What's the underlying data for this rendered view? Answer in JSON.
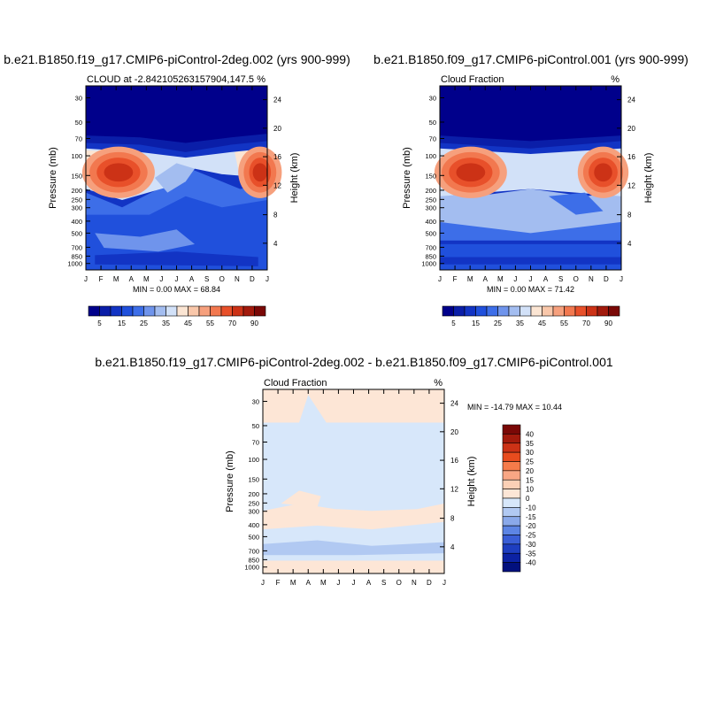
{
  "chart_data": [
    {
      "type": "heatmap",
      "title": "b.e21.B1850.f19_g17.CMIP6-piControl-2deg.002 (yrs 900-999)",
      "left_label": "CLOUD at -2.842105263157904,147.5",
      "right_label": "%",
      "ylabel": "Pressure (mb)",
      "ylabel_right": "Height (km)",
      "x_ticks": [
        "J",
        "F",
        "M",
        "A",
        "M",
        "J",
        "J",
        "A",
        "S",
        "O",
        "N",
        "D",
        "J"
      ],
      "y_ticks": [
        "30",
        "50",
        "70",
        "100",
        "150",
        "200",
        "250",
        "300",
        "400",
        "500",
        "700",
        "850",
        "1000"
      ],
      "y_ticks_right": [
        "24",
        "20",
        "16",
        "12",
        "8",
        "4"
      ],
      "stats": "MIN =   0.00 MAX =  68.84",
      "value_range": [
        0,
        68.84
      ],
      "colorbar_labels": [
        "5",
        "15",
        "25",
        "35",
        "45",
        "55",
        "70",
        "90"
      ]
    },
    {
      "type": "heatmap",
      "title": "b.e21.B1850.f09_g17.CMIP6-piControl.001 (yrs 900-999)",
      "left_label": "Cloud Fraction",
      "right_label": "%",
      "ylabel": "Pressure (mb)",
      "ylabel_right": "Height (km)",
      "x_ticks": [
        "J",
        "F",
        "M",
        "A",
        "M",
        "J",
        "J",
        "A",
        "S",
        "O",
        "N",
        "D",
        "J"
      ],
      "y_ticks": [
        "30",
        "50",
        "70",
        "100",
        "150",
        "200",
        "250",
        "300",
        "400",
        "500",
        "700",
        "850",
        "1000"
      ],
      "y_ticks_right": [
        "24",
        "20",
        "16",
        "12",
        "8",
        "4"
      ],
      "stats": "MIN =   0.00 MAX =  71.42",
      "value_range": [
        0,
        71.42
      ],
      "colorbar_labels": [
        "5",
        "15",
        "25",
        "35",
        "45",
        "55",
        "70",
        "90"
      ]
    },
    {
      "type": "heatmap",
      "title": "b.e21.B1850.f19_g17.CMIP6-piControl-2deg.002 - b.e21.B1850.f09_g17.CMIP6-piControl.001",
      "left_label": "Cloud Fraction",
      "right_label": "%",
      "ylabel": "Pressure (mb)",
      "ylabel_right": "Height (km)",
      "x_ticks": [
        "J",
        "F",
        "M",
        "A",
        "M",
        "J",
        "J",
        "A",
        "S",
        "O",
        "N",
        "D",
        "J"
      ],
      "y_ticks": [
        "30",
        "50",
        "70",
        "100",
        "150",
        "200",
        "250",
        "300",
        "400",
        "500",
        "700",
        "850",
        "1000"
      ],
      "y_ticks_right": [
        "24",
        "20",
        "16",
        "12",
        "8",
        "4"
      ],
      "stats": "MIN = -14.79 MAX =  10.44",
      "value_range": [
        -14.79,
        10.44
      ],
      "colorbar_labels": [
        "40",
        "35",
        "30",
        "25",
        "20",
        "15",
        "10",
        "0",
        "-10",
        "-15",
        "-20",
        "-25",
        "-30",
        "-35",
        "-40"
      ]
    }
  ],
  "colors": {
    "cloud_scale": [
      "#00008b",
      "#0a1ea8",
      "#1234c4",
      "#2050dc",
      "#3d6ee8",
      "#6f94ec",
      "#a3bdf0",
      "#d2e1f8",
      "#fbe5d3",
      "#f9c7aa",
      "#f6a07d",
      "#f2784f",
      "#e8502a",
      "#cc3216",
      "#a21a0c",
      "#7a0806"
    ],
    "diff_scale": [
      "#7a0806",
      "#a21a0c",
      "#cc3216",
      "#e84c1e",
      "#f57b4a",
      "#f8a684",
      "#fbd0b6",
      "#fde6d6",
      "#d7e7fa",
      "#b1c9f2",
      "#8aa9ea",
      "#5d85e4",
      "#3a5ed6",
      "#1e3ec0",
      "#0c22a4",
      "#02107e"
    ]
  }
}
